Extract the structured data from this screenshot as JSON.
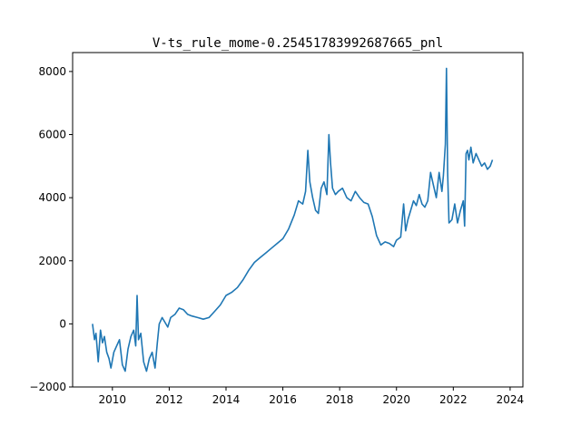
{
  "chart_data": {
    "type": "line",
    "title": "V-ts_rule_mome-0.25451783992687665_pnl",
    "xlabel": "",
    "ylabel": "",
    "xlim": [
      2008.6,
      2024.45
    ],
    "ylim": [
      -2000,
      8600
    ],
    "grid": false,
    "legend": "none",
    "x_ticks": [
      2010,
      2012,
      2014,
      2016,
      2018,
      2020,
      2022,
      2024
    ],
    "x_tick_labels": [
      "2010",
      "2012",
      "2014",
      "2016",
      "2018",
      "2020",
      "2022",
      "2024"
    ],
    "y_ticks": [
      -2000,
      0,
      2000,
      4000,
      6000,
      8000
    ],
    "y_tick_labels": [
      "−2000",
      "0",
      "2000",
      "4000",
      "6000",
      "8000"
    ],
    "series": [
      {
        "color": "#1f77b4",
        "x": [
          2009.3,
          2009.37,
          2009.42,
          2009.5,
          2009.58,
          2009.65,
          2009.72,
          2009.8,
          2009.88,
          2009.95,
          2010.05,
          2010.15,
          2010.25,
          2010.35,
          2010.45,
          2010.55,
          2010.65,
          2010.75,
          2010.82,
          2010.87,
          2010.92,
          2011.0,
          2011.1,
          2011.2,
          2011.3,
          2011.4,
          2011.5,
          2011.58,
          2011.65,
          2011.75,
          2011.85,
          2011.95,
          2012.05,
          2012.2,
          2012.35,
          2012.5,
          2012.65,
          2012.8,
          2013.0,
          2013.2,
          2013.4,
          2013.6,
          2013.8,
          2014.0,
          2014.2,
          2014.4,
          2014.6,
          2014.8,
          2015.0,
          2015.2,
          2015.4,
          2015.6,
          2015.8,
          2016.0,
          2016.2,
          2016.4,
          2016.55,
          2016.7,
          2016.8,
          2016.88,
          2016.95,
          2017.05,
          2017.15,
          2017.25,
          2017.35,
          2017.45,
          2017.55,
          2017.62,
          2017.68,
          2017.75,
          2017.85,
          2017.95,
          2018.1,
          2018.25,
          2018.4,
          2018.55,
          2018.7,
          2018.85,
          2019.0,
          2019.15,
          2019.3,
          2019.45,
          2019.6,
          2019.75,
          2019.9,
          2020.0,
          2020.15,
          2020.25,
          2020.32,
          2020.4,
          2020.5,
          2020.6,
          2020.7,
          2020.8,
          2020.9,
          2021.0,
          2021.1,
          2021.2,
          2021.3,
          2021.4,
          2021.5,
          2021.6,
          2021.65,
          2021.72,
          2021.76,
          2021.8,
          2021.85,
          2021.95,
          2022.05,
          2022.15,
          2022.25,
          2022.35,
          2022.4,
          2022.45,
          2022.5,
          2022.55,
          2022.62,
          2022.7,
          2022.8,
          2022.9,
          2023.0,
          2023.1,
          2023.2,
          2023.3,
          2023.38
        ],
        "y": [
          0,
          -500,
          -300,
          -1200,
          -200,
          -600,
          -400,
          -900,
          -1100,
          -1400,
          -900,
          -700,
          -500,
          -1300,
          -1500,
          -800,
          -400,
          -200,
          -700,
          900,
          -500,
          -300,
          -1200,
          -1500,
          -1100,
          -900,
          -1400,
          -600,
          0,
          200,
          50,
          -100,
          200,
          300,
          500,
          450,
          300,
          250,
          200,
          150,
          200,
          400,
          600,
          900,
          1000,
          1150,
          1400,
          1700,
          1950,
          2100,
          2250,
          2400,
          2550,
          2700,
          3000,
          3450,
          3900,
          3800,
          4200,
          5500,
          4500,
          4000,
          3600,
          3500,
          4300,
          4500,
          4100,
          6000,
          5100,
          4300,
          4100,
          4200,
          4300,
          4000,
          3900,
          4200,
          4000,
          3850,
          3800,
          3400,
          2800,
          2500,
          2600,
          2550,
          2450,
          2650,
          2750,
          3800,
          2950,
          3300,
          3600,
          3900,
          3750,
          4100,
          3800,
          3700,
          3900,
          4800,
          4400,
          4000,
          4800,
          4200,
          4700,
          5700,
          8100,
          4800,
          3200,
          3300,
          3800,
          3200,
          3600,
          3900,
          3100,
          5400,
          5500,
          5200,
          5600,
          5100,
          5400,
          5200,
          5000,
          5100,
          4900,
          5000,
          5200
        ]
      }
    ]
  }
}
